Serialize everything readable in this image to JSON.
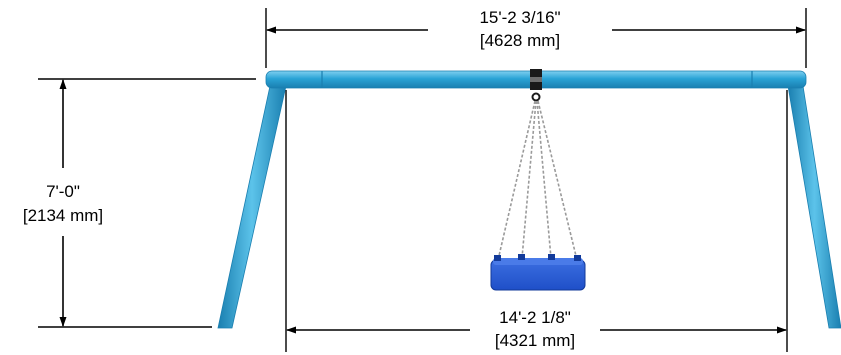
{
  "dimensions": {
    "overall_width": {
      "imperial": "15'-2 3/16\"",
      "metric": "[4628 mm]"
    },
    "height": {
      "imperial": "7'-0\"",
      "metric": "[2134 mm]"
    },
    "leg_span": {
      "imperial": "14'-2 1/8\"",
      "metric": "[4321 mm]"
    }
  },
  "colors": {
    "frame": "#2aa3d6",
    "frame_dark": "#1a7fb0",
    "frame_light": "#7fd0f0",
    "seat": "#1f4fc8",
    "seat_dark": "#123a9a",
    "chain": "#9a9a9a",
    "line": "#000000"
  }
}
